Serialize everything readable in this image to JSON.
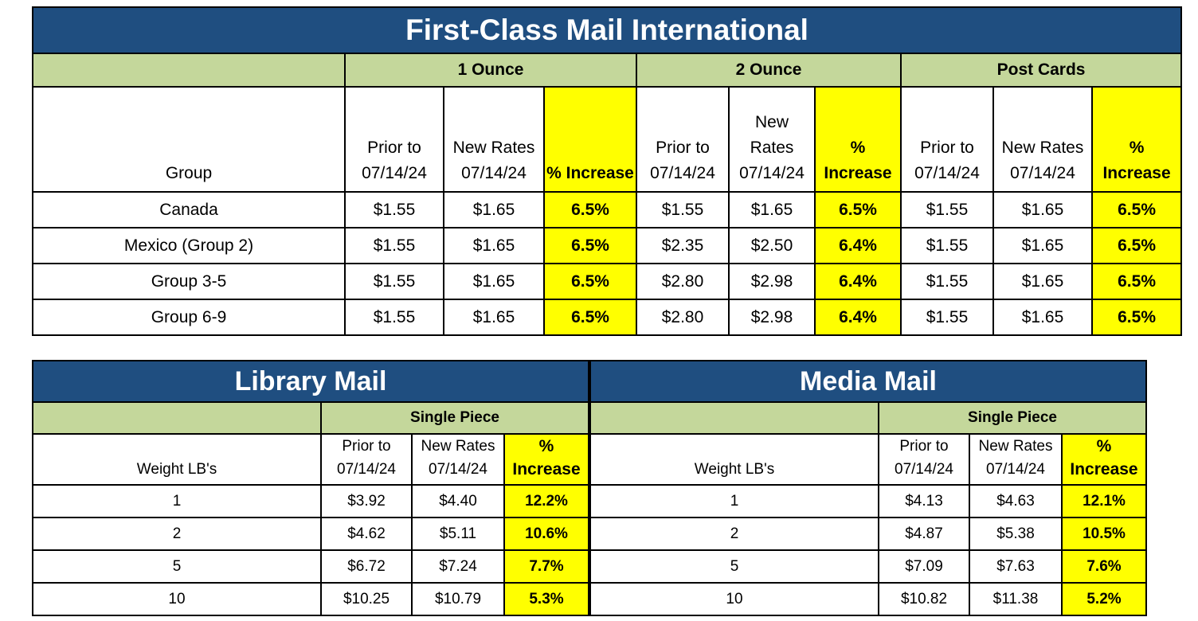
{
  "fcmi": {
    "title": "First-Class Mail International",
    "groups": [
      "1 Ounce",
      "2 Ounce",
      "Post Cards"
    ],
    "headers": {
      "group": "Group",
      "c1": [
        "Prior to",
        "07/14/24"
      ],
      "c2": [
        "New Rates",
        "07/14/24"
      ],
      "c3": [
        "% Increase"
      ],
      "c4": [
        "Prior to",
        "07/14/24"
      ],
      "c5": [
        "New",
        "Rates",
        "07/14/24"
      ],
      "c6": [
        "%",
        "Increase"
      ],
      "c7": [
        "Prior to",
        "07/14/24"
      ],
      "c8": [
        "New Rates",
        "07/14/24"
      ],
      "c9": [
        "%",
        "Increase"
      ]
    },
    "rows": [
      [
        "Canada",
        "$1.55",
        "$1.65",
        "6.5%",
        "$1.55",
        "$1.65",
        "6.5%",
        "$1.55",
        "$1.65",
        "6.5%"
      ],
      [
        "Mexico (Group 2)",
        "$1.55",
        "$1.65",
        "6.5%",
        "$2.35",
        "$2.50",
        "6.4%",
        "$1.55",
        "$1.65",
        "6.5%"
      ],
      [
        "Group 3-5",
        "$1.55",
        "$1.65",
        "6.5%",
        "$2.80",
        "$2.98",
        "6.4%",
        "$1.55",
        "$1.65",
        "6.5%"
      ],
      [
        "Group 6-9",
        "$1.55",
        "$1.65",
        "6.5%",
        "$2.80",
        "$2.98",
        "6.4%",
        "$1.55",
        "$1.65",
        "6.5%"
      ]
    ]
  },
  "library": {
    "title": "Library Mail",
    "sub": "Single Piece",
    "headers": {
      "weight": "Weight LB's",
      "prior": [
        "Prior to",
        "07/14/24"
      ],
      "new": [
        "New Rates",
        "07/14/24"
      ],
      "inc": "% Increase"
    },
    "rows": [
      [
        "1",
        "$3.92",
        "$4.40",
        "12.2%"
      ],
      [
        "2",
        "$4.62",
        "$5.11",
        "10.6%"
      ],
      [
        "5",
        "$6.72",
        "$7.24",
        "7.7%"
      ],
      [
        "10",
        "$10.25",
        "$10.79",
        "5.3%"
      ]
    ]
  },
  "media": {
    "title": "Media Mail",
    "sub": "Single Piece",
    "headers": {
      "weight": "Weight LB's",
      "prior": [
        "Prior to",
        "07/14/24"
      ],
      "new": [
        "New Rates",
        "07/14/24"
      ],
      "inc": "% Increase"
    },
    "rows": [
      [
        "1",
        "$4.13",
        "$4.63",
        "12.1%"
      ],
      [
        "2",
        "$4.87",
        "$5.38",
        "10.5%"
      ],
      [
        "5",
        "$7.09",
        "$7.63",
        "7.6%"
      ],
      [
        "10",
        "$10.82",
        "$11.38",
        "5.2%"
      ]
    ]
  }
}
